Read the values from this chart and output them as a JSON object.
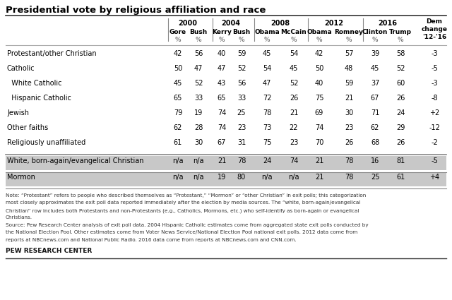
{
  "title": "Presidential vote by religious affiliation and race",
  "year_headers": [
    "2000",
    "2004",
    "2008",
    "2012",
    "2016"
  ],
  "candidate_headers": [
    "Gore",
    "Bush",
    "Kerry",
    "Bush",
    "Obama",
    "McCain",
    "Obama",
    "Romney",
    "Clinton",
    "Trump"
  ],
  "rows": [
    {
      "label": "Protestant/other Christian",
      "indent": false,
      "values": [
        "42",
        "56",
        "40",
        "59",
        "45",
        "54",
        "42",
        "57",
        "39",
        "58"
      ],
      "dem_change": "-3"
    },
    {
      "label": "Catholic",
      "indent": false,
      "values": [
        "50",
        "47",
        "47",
        "52",
        "54",
        "45",
        "50",
        "48",
        "45",
        "52"
      ],
      "dem_change": "-5"
    },
    {
      "label": "White Catholic",
      "indent": true,
      "values": [
        "45",
        "52",
        "43",
        "56",
        "47",
        "52",
        "40",
        "59",
        "37",
        "60"
      ],
      "dem_change": "-3"
    },
    {
      "label": "Hispanic Catholic",
      "indent": true,
      "values": [
        "65",
        "33",
        "65",
        "33",
        "72",
        "26",
        "75",
        "21",
        "67",
        "26"
      ],
      "dem_change": "-8"
    },
    {
      "label": "Jewish",
      "indent": false,
      "values": [
        "79",
        "19",
        "74",
        "25",
        "78",
        "21",
        "69",
        "30",
        "71",
        "24"
      ],
      "dem_change": "+2"
    },
    {
      "label": "Other faiths",
      "indent": false,
      "values": [
        "62",
        "28",
        "74",
        "23",
        "73",
        "22",
        "74",
        "23",
        "62",
        "29"
      ],
      "dem_change": "-12"
    },
    {
      "label": "Religiously unaffiliated",
      "indent": false,
      "values": [
        "61",
        "30",
        "67",
        "31",
        "75",
        "23",
        "70",
        "26",
        "68",
        "26"
      ],
      "dem_change": "-2"
    }
  ],
  "rows_shaded": [
    {
      "label": "White, born-again/evangelical Christian",
      "indent": false,
      "values": [
        "n/a",
        "n/a",
        "21",
        "78",
        "24",
        "74",
        "21",
        "78",
        "16",
        "81"
      ],
      "dem_change": "-5"
    },
    {
      "label": "Mormon",
      "indent": false,
      "values": [
        "n/a",
        "n/a",
        "19",
        "80",
        "n/a",
        "n/a",
        "21",
        "78",
        "25",
        "61"
      ],
      "dem_change": "+4"
    }
  ],
  "note_line1": "Note: “Protestant” refers to people who described themselves as “Protestant,” “Mormon” or “other Christian” in exit polls; this categorization",
  "note_line2": "most closely approximates the exit poll data reported immediately after the election by media sources. The “white, born-again/evangelical",
  "note_line3": "Christian” row includes both Protestants and non-Protestants (e.g., Catholics, Mormons, etc.) who self-identify as born-again or evangelical",
  "note_line4": "Christians.",
  "note_line5": "Source: Pew Research Center analysis of exit poll data. 2004 Hispanic Catholic estimates come from aggregated state exit polls conducted by",
  "note_line6": "the National Election Pool. Other estimates come from Voter News Service/National Election Pool national exit polls. 2012 data come from",
  "note_line7": "reports at NBCnews.com and National Public Radio. 2016 data come from reports at NBCnews.com and CNN.com.",
  "footer": "PEW RESEARCH CENTER",
  "bg_color": "#ffffff",
  "shaded_row_color": "#c8c8c8"
}
